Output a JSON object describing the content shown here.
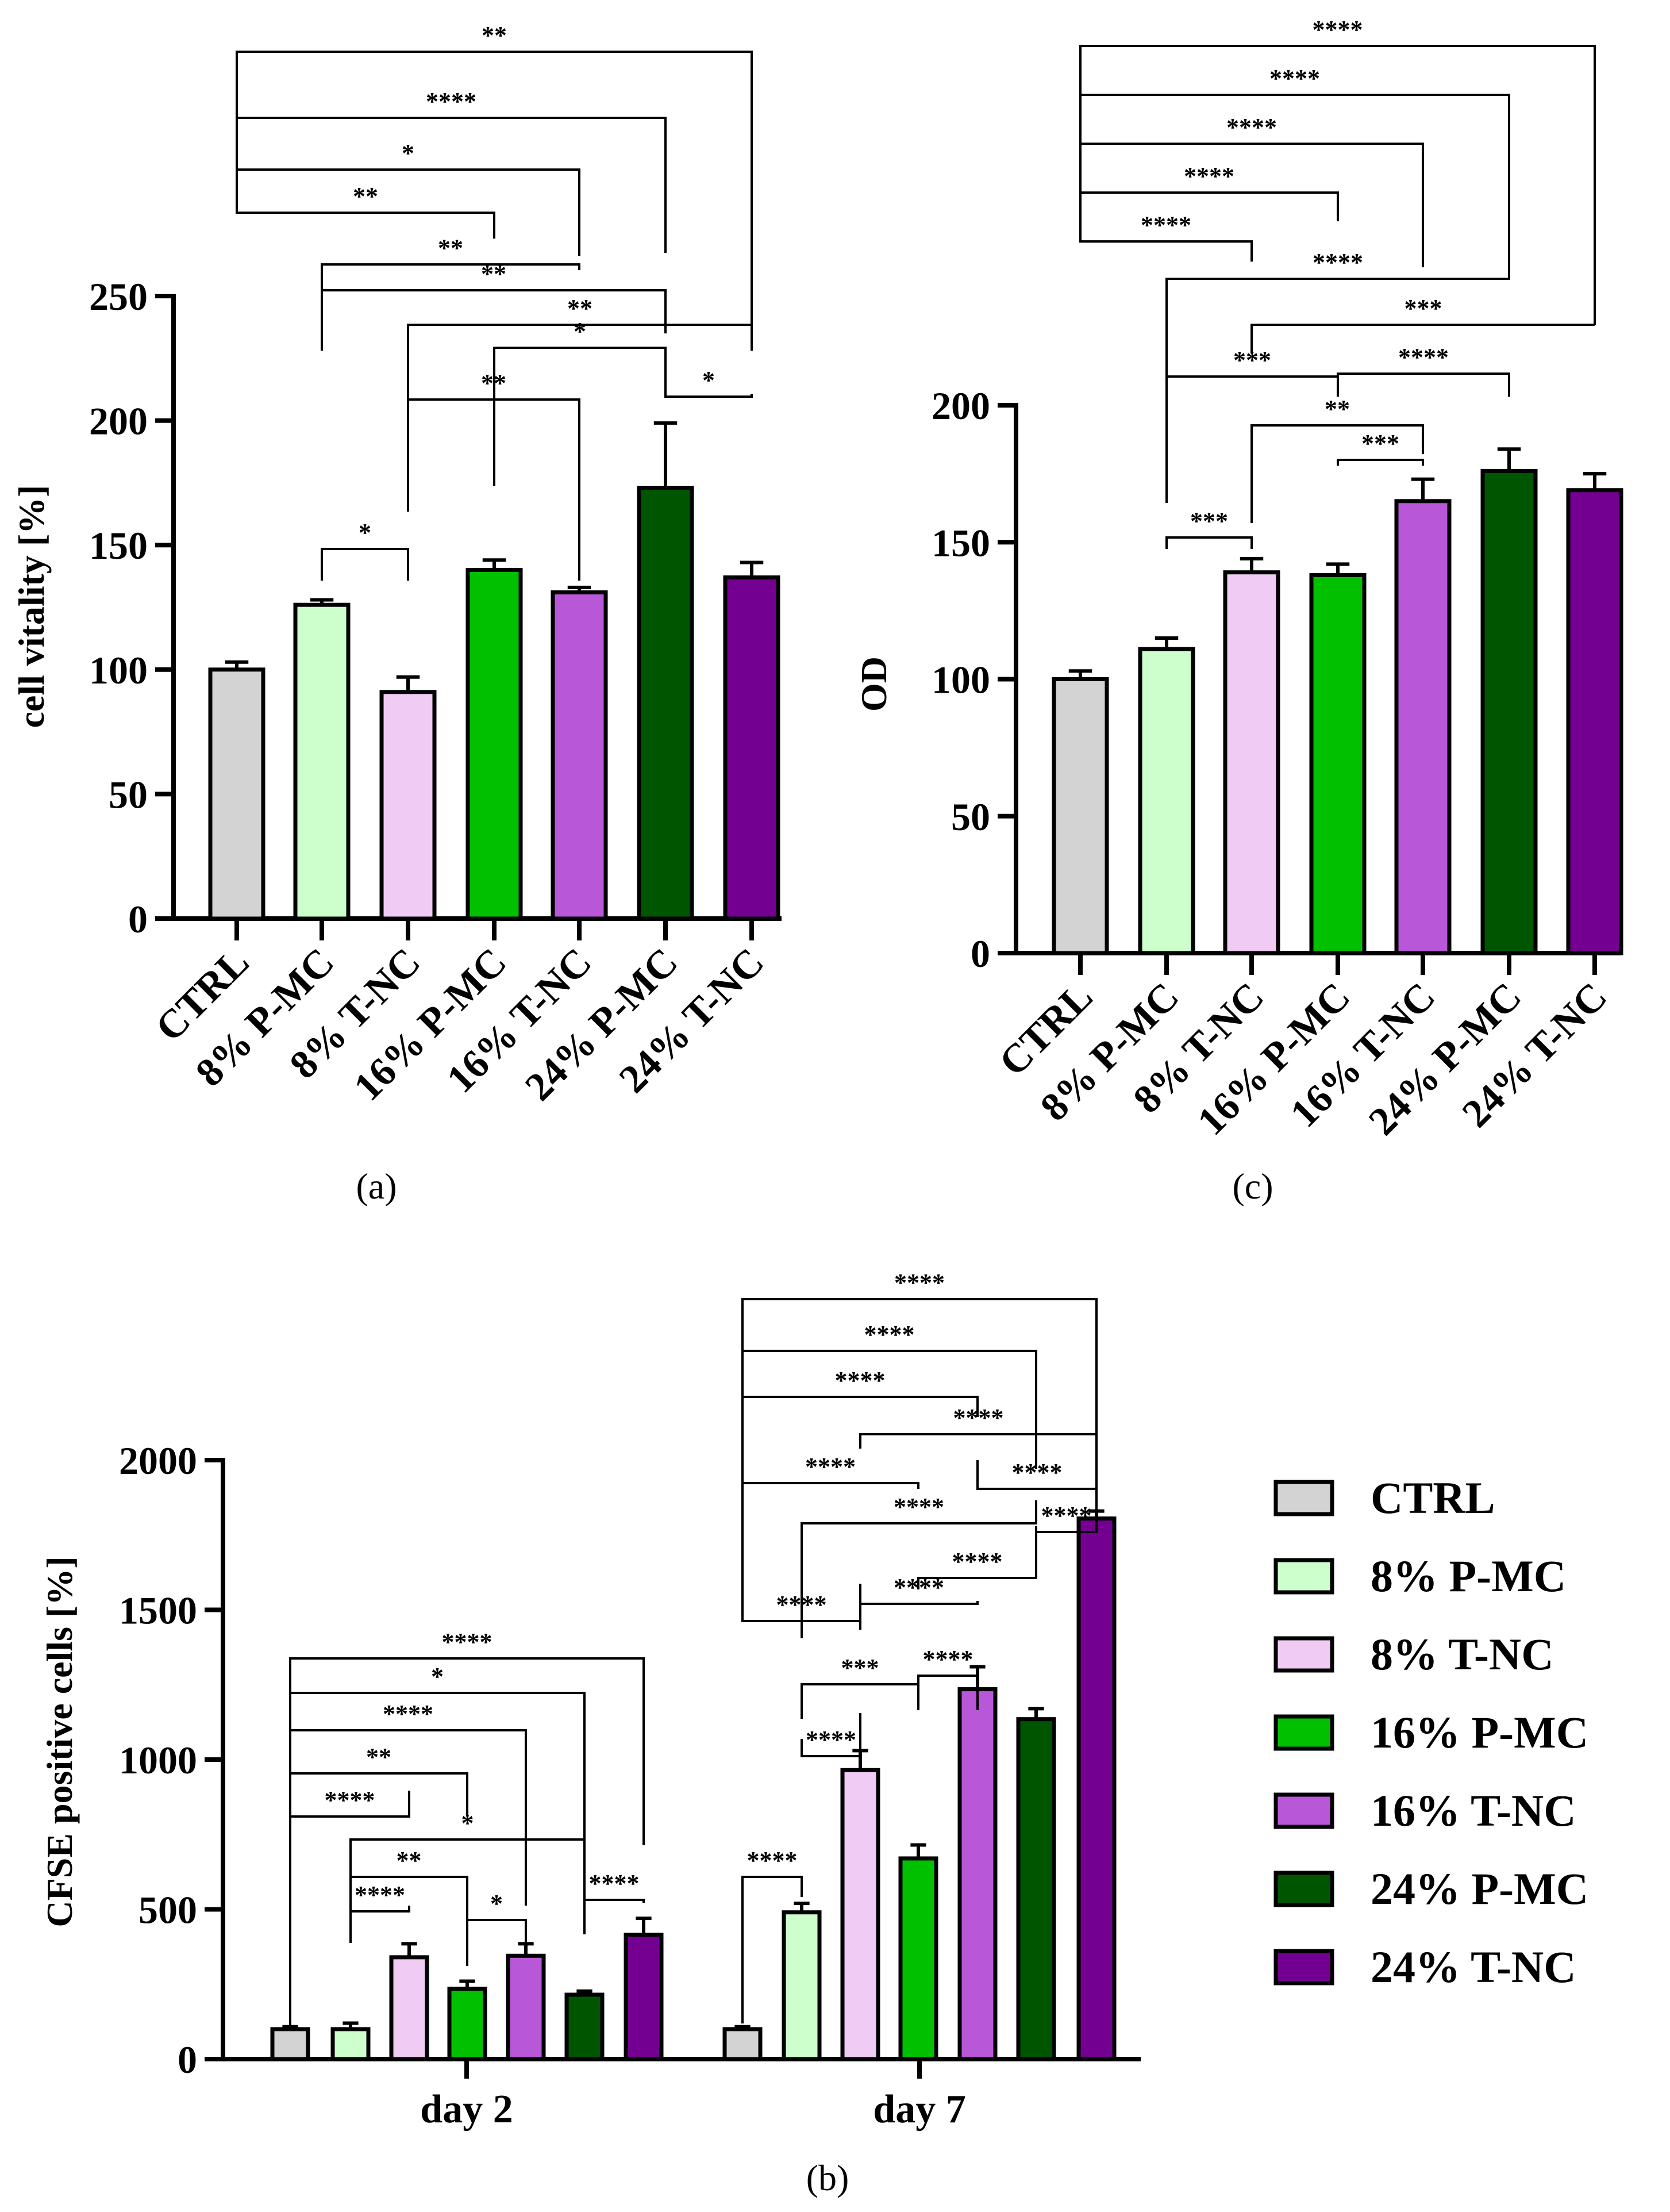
{
  "colors": {
    "CTRL": "#d3d3d3",
    "8% P-MC": "#ccffcc",
    "8% T-NC": "#f0ccf5",
    "16% P-MC": "#00c000",
    "16% T-NC": "#b857d8",
    "24% P-MC": "#005500",
    "24% T-NC": "#730090",
    "stroke": "#000000"
  },
  "chart_data": [
    {
      "panel_label": "(a)",
      "type": "bar",
      "ylabel": "cell vitality [%]",
      "ylim": [
        0,
        250
      ],
      "yticks": [
        "0",
        "50",
        "100",
        "150",
        "200",
        "250"
      ],
      "categories": [
        "CTRL",
        "8% P-MC",
        "8% T-NC",
        "16% P-MC",
        "16% T-NC",
        "24% P-MC",
        "24% T-NC"
      ],
      "values": [
        100,
        126,
        91,
        140,
        131,
        173,
        137
      ],
      "errors": [
        3,
        2,
        6,
        4,
        2,
        26,
        6
      ],
      "significance": [
        {
          "a": 0,
          "b": 6,
          "label": "**"
        },
        {
          "a": 0,
          "b": 5,
          "label": "****"
        },
        {
          "a": 0,
          "b": 4,
          "label": "*"
        },
        {
          "a": 0,
          "b": 3,
          "label": "**"
        },
        {
          "a": 1,
          "b": 4,
          "label": "**"
        },
        {
          "a": 1,
          "b": 5,
          "label": "**"
        },
        {
          "a": 2,
          "b": 6,
          "label": "**"
        },
        {
          "a": 3,
          "b": 5,
          "label": "*"
        },
        {
          "a": 5,
          "b": 6,
          "label": "*"
        },
        {
          "a": 2,
          "b": 4,
          "label": "**"
        },
        {
          "a": 1,
          "b": 2,
          "label": "*"
        }
      ]
    },
    {
      "panel_label": "(c)",
      "type": "bar",
      "ylabel": "OD",
      "ylim": [
        0,
        200
      ],
      "yticks": [
        "0",
        "50",
        "100",
        "150",
        "200"
      ],
      "categories": [
        "CTRL",
        "8% P-MC",
        "8% T-NC",
        "16% P-MC",
        "16% T-NC",
        "24% P-MC",
        "24% T-NC"
      ],
      "values": [
        100,
        111,
        139,
        138,
        165,
        176,
        169
      ],
      "errors": [
        3,
        4,
        5,
        4,
        8,
        8,
        6
      ],
      "significance": [
        {
          "a": 0,
          "b": 6,
          "label": "****"
        },
        {
          "a": 0,
          "b": 5,
          "label": "****"
        },
        {
          "a": 0,
          "b": 4,
          "label": "****"
        },
        {
          "a": 0,
          "b": 3,
          "label": "****"
        },
        {
          "a": 0,
          "b": 2,
          "label": "****"
        },
        {
          "a": 1,
          "b": 5,
          "label": "****"
        },
        {
          "a": 2,
          "b": 6,
          "label": "***"
        },
        {
          "a": 1,
          "b": 3,
          "label": "***"
        },
        {
          "a": 3,
          "b": 5,
          "label": "****"
        },
        {
          "a": 2,
          "b": 4,
          "label": "**"
        },
        {
          "a": 3,
          "b": 4,
          "label": "***"
        },
        {
          "a": 1,
          "b": 2,
          "label": "***"
        }
      ]
    },
    {
      "panel_label": "(b)",
      "type": "bar",
      "ylabel": "CFSE positive cells [%]",
      "ylim": [
        0,
        2000
      ],
      "yticks": [
        "0",
        "500",
        "1000",
        "1500",
        "2000"
      ],
      "groups": [
        "day 2",
        "day 7"
      ],
      "series": [
        {
          "name": "CTRL",
          "values": [
            100,
            100
          ],
          "errors": [
            8,
            8
          ]
        },
        {
          "name": "8% P-MC",
          "values": [
            100,
            490
          ],
          "errors": [
            20,
            30
          ]
        },
        {
          "name": "8% T-NC",
          "values": [
            340,
            965
          ],
          "errors": [
            45,
            65
          ]
        },
        {
          "name": "16% P-MC",
          "values": [
            235,
            670
          ],
          "errors": [
            25,
            45
          ]
        },
        {
          "name": "16% T-NC",
          "values": [
            345,
            1235
          ],
          "errors": [
            40,
            75
          ]
        },
        {
          "name": "24% P-MC",
          "values": [
            215,
            1135
          ],
          "errors": [
            12,
            35
          ]
        },
        {
          "name": "24% T-NC",
          "values": [
            415,
            1805
          ],
          "errors": [
            55,
            25
          ]
        }
      ],
      "significance_day2": [
        {
          "a": 0,
          "b": 6,
          "label": "****"
        },
        {
          "a": 0,
          "b": 5,
          "label": "*"
        },
        {
          "a": 0,
          "b": 4,
          "label": "****"
        },
        {
          "a": 0,
          "b": 3,
          "label": "**"
        },
        {
          "a": 0,
          "b": 2,
          "label": "****"
        },
        {
          "a": 1,
          "b": 5,
          "label": "*"
        },
        {
          "a": 1,
          "b": 3,
          "label": "**"
        },
        {
          "a": 1,
          "b": 2,
          "label": "****"
        },
        {
          "a": 3,
          "b": 4,
          "label": "*"
        },
        {
          "a": 5,
          "b": 6,
          "label": "****"
        }
      ],
      "significance_day7": [
        {
          "a": 0,
          "b": 6,
          "label": "****"
        },
        {
          "a": 0,
          "b": 5,
          "label": "****"
        },
        {
          "a": 0,
          "b": 4,
          "label": "****"
        },
        {
          "a": 0,
          "b": 3,
          "label": "****"
        },
        {
          "a": 0,
          "b": 2,
          "label": "****"
        },
        {
          "a": 0,
          "b": 1,
          "label": "****"
        },
        {
          "a": 2,
          "b": 6,
          "label": "****"
        },
        {
          "a": 1,
          "b": 5,
          "label": "****"
        },
        {
          "a": 4,
          "b": 6,
          "label": "****"
        },
        {
          "a": 5,
          "b": 6,
          "label": "****"
        },
        {
          "a": 3,
          "b": 5,
          "label": "****"
        },
        {
          "a": 2,
          "b": 4,
          "label": "****"
        },
        {
          "a": 1,
          "b": 3,
          "label": "***"
        },
        {
          "a": 1,
          "b": 2,
          "label": "****"
        },
        {
          "a": 3,
          "b": 4,
          "label": "****"
        }
      ],
      "legend": [
        "CTRL",
        "8% P-MC",
        "8% T-NC",
        "16% P-MC",
        "16% T-NC",
        "24% P-MC",
        "24% T-NC"
      ]
    }
  ]
}
